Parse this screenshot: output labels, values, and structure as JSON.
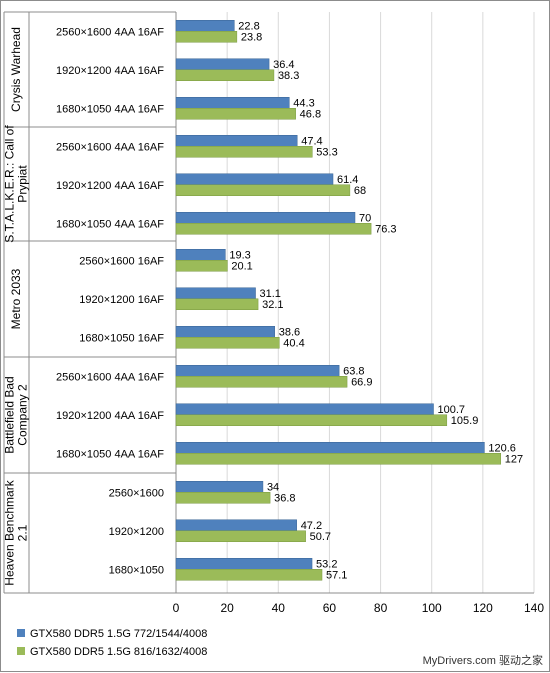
{
  "chart_data": {
    "type": "bar",
    "orientation": "horizontal",
    "groups": [
      {
        "name": "Crysis Warhead",
        "settings": [
          "2560×1600 4AA 16AF",
          "1920×1200 4AA 16AF",
          "1680×1050 4AA 16AF"
        ]
      },
      {
        "name": "S.T.A.L.K.E.R.: Call of Prypiat",
        "settings": [
          "2560×1600 4AA 16AF",
          "1920×1200 4AA 16AF",
          "1680×1050 4AA 16AF"
        ]
      },
      {
        "name": "Metro 2033",
        "settings": [
          "2560×1600 16AF",
          "1920×1200 16AF",
          "1680×1050 16AF"
        ]
      },
      {
        "name": "Battlefield Bad Company 2",
        "settings": [
          "2560×1600 4AA 16AF",
          "1920×1200 4AA 16AF",
          "1680×1050 4AA 16AF"
        ]
      },
      {
        "name": "Heaven Benchmark 2.1",
        "settings": [
          "2560×1600",
          "1920×1200",
          "1680×1050"
        ]
      }
    ],
    "group_label_lines": [
      [
        "Crysis Warhead"
      ],
      [
        "S.T.A.L.K.E.R.: Call of",
        "Prypiat"
      ],
      [
        "Metro 2033"
      ],
      [
        "Battlefield Bad",
        "Company 2"
      ],
      [
        "Heaven Benchmark",
        "2.1"
      ]
    ],
    "series": [
      {
        "name": "GTX580 DDR5 1.5G 772/1544/4008",
        "color": "#4f81bd",
        "values": [
          22.8,
          36.4,
          44.3,
          47.4,
          61.4,
          70,
          19.3,
          31.1,
          38.6,
          63.8,
          100.7,
          120.6,
          34,
          47.2,
          53.2
        ]
      },
      {
        "name": "GTX580 DDR5 1.5G 816/1632/4008",
        "color": "#9bbb59",
        "values": [
          23.8,
          38.3,
          46.8,
          53.3,
          68,
          76.3,
          20.1,
          32.1,
          40.4,
          66.9,
          105.9,
          127,
          36.8,
          50.7,
          57.1
        ]
      }
    ],
    "xlim": [
      0,
      140
    ],
    "xticks": [
      0,
      20,
      40,
      60,
      80,
      100,
      120,
      140
    ],
    "grid": true,
    "legend_position": "bottom-left"
  },
  "watermark": "MyDrivers.com 驱动之家"
}
